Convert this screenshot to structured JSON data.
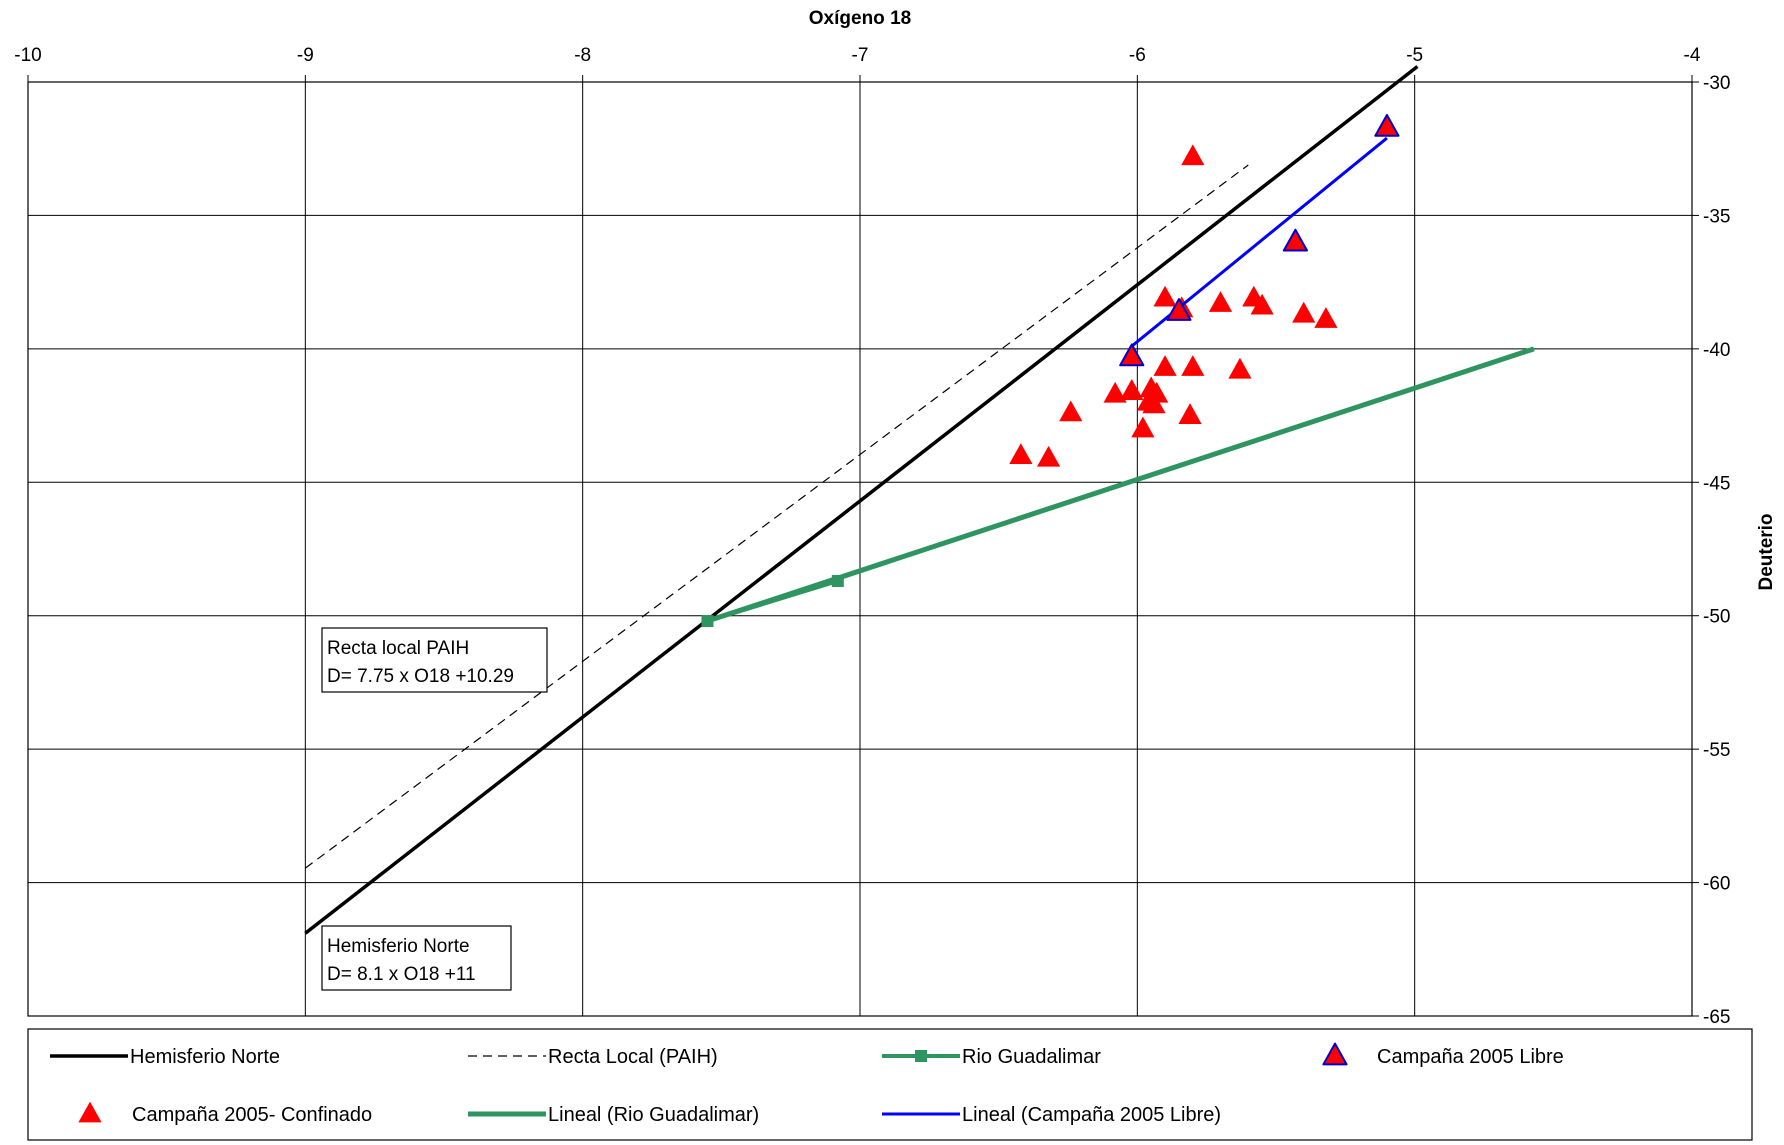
{
  "chart_data": {
    "type": "scatter",
    "title": "",
    "xlabel": "Oxígeno 18",
    "ylabel": "Deuterio",
    "xlim": [
      -10,
      -4
    ],
    "ylim": [
      -65,
      -30
    ],
    "x_ticks": [
      -10,
      -9,
      -8,
      -7,
      -6,
      -5,
      -4
    ],
    "y_ticks": [
      -30,
      -35,
      -40,
      -45,
      -50,
      -55,
      -60,
      -65
    ],
    "x_tick_labels": [
      "-10",
      "-9",
      "-8",
      "-7",
      "-6",
      "-5",
      "-4"
    ],
    "y_tick_labels": [
      "-30",
      "-35",
      "-40",
      "-45",
      "-50",
      "-55",
      "-60",
      "-65"
    ],
    "x_axis_position": "top",
    "y_axis_position": "right",
    "grid": true,
    "legend_position": "bottom",
    "series": [
      {
        "name": "Hemisferio Norte",
        "kind": "line",
        "color": "#000000",
        "style": "solid",
        "x": [
          -9,
          -4.99
        ],
        "y": [
          -61.9,
          -29.42
        ]
      },
      {
        "name": "Recta Local (PAIH)",
        "kind": "line",
        "color": "#000000",
        "style": "dashed",
        "x": [
          -9,
          -5.6
        ],
        "y": [
          -59.46,
          -33.11
        ]
      },
      {
        "name": "Rio Guadalimar",
        "kind": "line-markers",
        "color": "#2e9460",
        "marker": "square",
        "x": [
          -7.55,
          -7.08
        ],
        "y": [
          -50.2,
          -48.7
        ]
      },
      {
        "name": "Campaña 2005 Libre",
        "kind": "scatter",
        "color": "#ff0000",
        "edge_color": "#0000cc",
        "marker": "triangle",
        "x": [
          -5.1,
          -5.43,
          -5.85,
          -6.02
        ],
        "y": [
          -31.7,
          -36.0,
          -38.6,
          -40.3
        ]
      },
      {
        "name": "Campaña 2005- Confinado",
        "kind": "scatter",
        "color": "#ff0000",
        "marker": "triangle",
        "x": [
          -5.8,
          -5.9,
          -5.84,
          -5.7,
          -5.58,
          -5.55,
          -5.4,
          -5.32,
          -6.02,
          -5.9,
          -5.8,
          -5.63,
          -6.08,
          -6.02,
          -5.95,
          -5.93,
          -5.96,
          -5.94,
          -6.24,
          -5.81,
          -5.98,
          -6.42,
          -6.32
        ],
        "y": [
          -32.8,
          -38.1,
          -38.5,
          -38.3,
          -38.1,
          -38.4,
          -38.7,
          -38.9,
          -41.6,
          -40.7,
          -40.7,
          -40.8,
          -41.7,
          -41.6,
          -41.5,
          -41.7,
          -42.0,
          -42.1,
          -42.4,
          -42.5,
          -43.0,
          -44.0,
          -44.1
        ]
      },
      {
        "name": "Lineal (Rio Guadalimar)",
        "kind": "trendline",
        "color": "#2e9460",
        "x": [
          -7.55,
          -4.57
        ],
        "y": [
          -50.2,
          -40.0
        ]
      },
      {
        "name": "Lineal (Campaña 2005 Libre)",
        "kind": "trendline",
        "color": "#0000ff",
        "x": [
          -6.02,
          -5.1
        ],
        "y": [
          -39.9,
          -32.1
        ]
      }
    ],
    "legend": [
      "Hemisferio Norte",
      "Recta Local (PAIH)",
      "Rio Guadalimar",
      "Campaña 2005 Libre",
      "Campaña 2005- Confinado",
      "Lineal (Rio Guadalimar)",
      "Lineal (Campaña 2005 Libre)"
    ],
    "annotations": [
      {
        "lines": [
          "Recta local PAIH",
          "D= 7.75 x O18 +10.29"
        ],
        "x": -9,
        "y": -50.3
      },
      {
        "lines": [
          "Hemisferio Norte",
          "D= 8.1 x O18 +11"
        ],
        "x": -9,
        "y": -61.6
      }
    ]
  }
}
